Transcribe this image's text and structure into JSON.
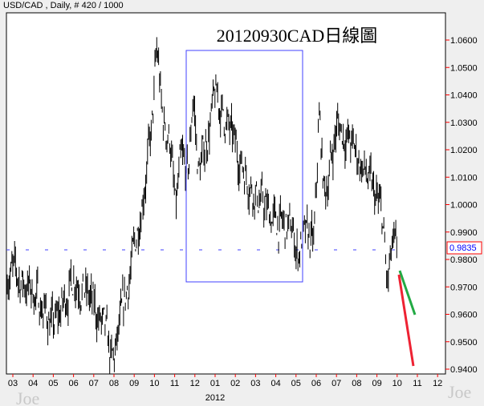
{
  "header": "USD/CAD , Daily, # 420 / 1000",
  "watermark": "Joe",
  "chart_data": {
    "type": "bar",
    "title": "20120930CAD日線圖",
    "symbol": "USD/CAD",
    "period": "Daily",
    "ylim": [
      0.936,
      1.0698
    ],
    "yticks": [
      "1.0600",
      "1.0500",
      "1.0400",
      "1.0300",
      "1.0200",
      "1.0100",
      "1.0000",
      "0.9900",
      "0.9800",
      "0.9700",
      "0.9600",
      "0.9500",
      "0.9400"
    ],
    "xticks": [
      "03",
      "04",
      "05",
      "06",
      "07",
      "08",
      "09",
      "10",
      "11",
      "12",
      "01",
      "02",
      "03",
      "04",
      "05",
      "06",
      "07",
      "08",
      "09",
      "10",
      "11",
      "12"
    ],
    "year_label": "2012",
    "last_price": "0.9835",
    "approx_monthly_levels": [
      {
        "m": "2011-03",
        "v": 0.975
      },
      {
        "m": "2011-04",
        "v": 0.968
      },
      {
        "m": "2011-05",
        "v": 0.955
      },
      {
        "m": "2011-06",
        "v": 0.975
      },
      {
        "m": "2011-07",
        "v": 0.962
      },
      {
        "m": "2011-08",
        "v": 0.945
      },
      {
        "m": "2011-09",
        "v": 0.985
      },
      {
        "m": "2011-10",
        "v": 1.035
      },
      {
        "m": "2011-11",
        "v": 1.02
      },
      {
        "m": "2011-12",
        "v": 1.005
      },
      {
        "m": "2012-01",
        "v": 1.04
      },
      {
        "m": "2012-02",
        "v": 1.02
      },
      {
        "m": "2012-03",
        "v": 1.003
      },
      {
        "m": "2012-04",
        "v": 0.993
      },
      {
        "m": "2012-05",
        "v": 0.99
      },
      {
        "m": "2012-06",
        "v": 0.985
      },
      {
        "m": "2012-07",
        "v": 1.03
      },
      {
        "m": "2012-08",
        "v": 1.018
      },
      {
        "m": "2012-09",
        "v": 1.0
      },
      {
        "m": "2012-10",
        "v": 0.98
      }
    ],
    "colors": {
      "bars": "#000000",
      "box": "#4040ff",
      "price_label": "#0000ff",
      "green_line": "#22aa44",
      "red_line": "#ee2233"
    }
  }
}
